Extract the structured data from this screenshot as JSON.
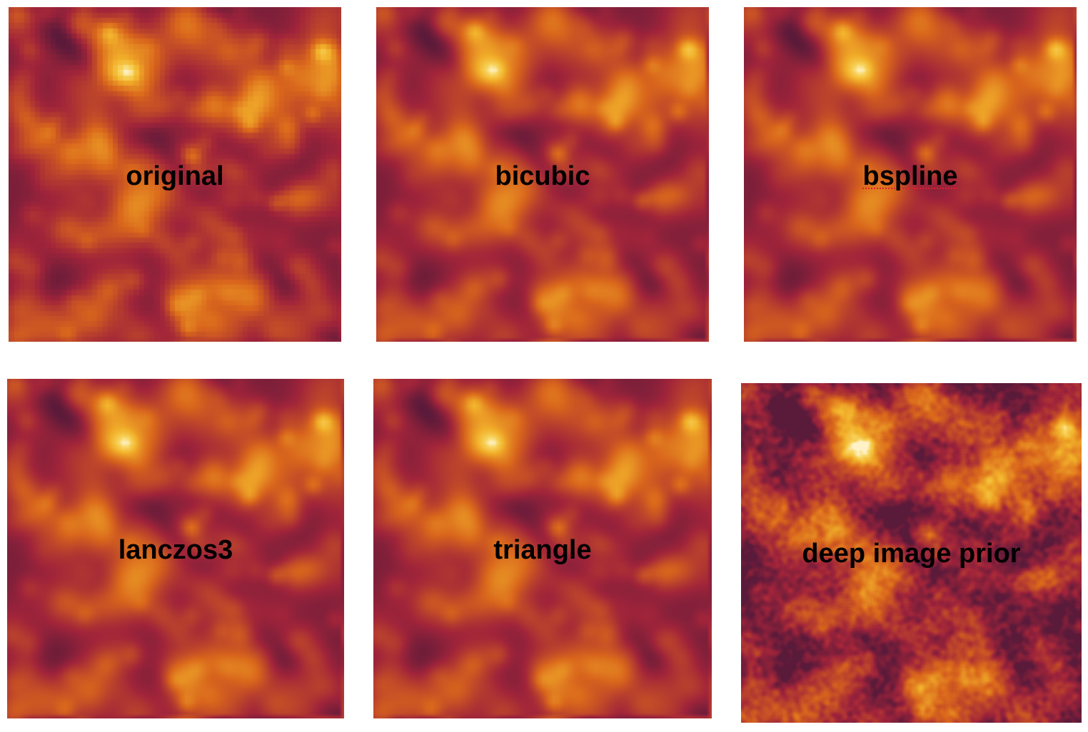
{
  "tiles": [
    {
      "id": "original",
      "label": "original",
      "method": "original"
    },
    {
      "id": "bicubic",
      "label": "bicubic",
      "method": "interp"
    },
    {
      "id": "bspline",
      "label": "bspline",
      "method": "interp"
    },
    {
      "id": "lanczos3",
      "label": "lanczos3",
      "method": "interp"
    },
    {
      "id": "triangle",
      "label": "triangle",
      "method": "interp"
    },
    {
      "id": "dip",
      "label": "deep image prior",
      "method": "dip"
    }
  ],
  "colors": {
    "dark": "#a0243a",
    "mid": "#d9661c",
    "light": "#f2b02a",
    "highlight": "#fff2c8",
    "spell_underline": "#e0202a",
    "label_text": "#000000"
  }
}
